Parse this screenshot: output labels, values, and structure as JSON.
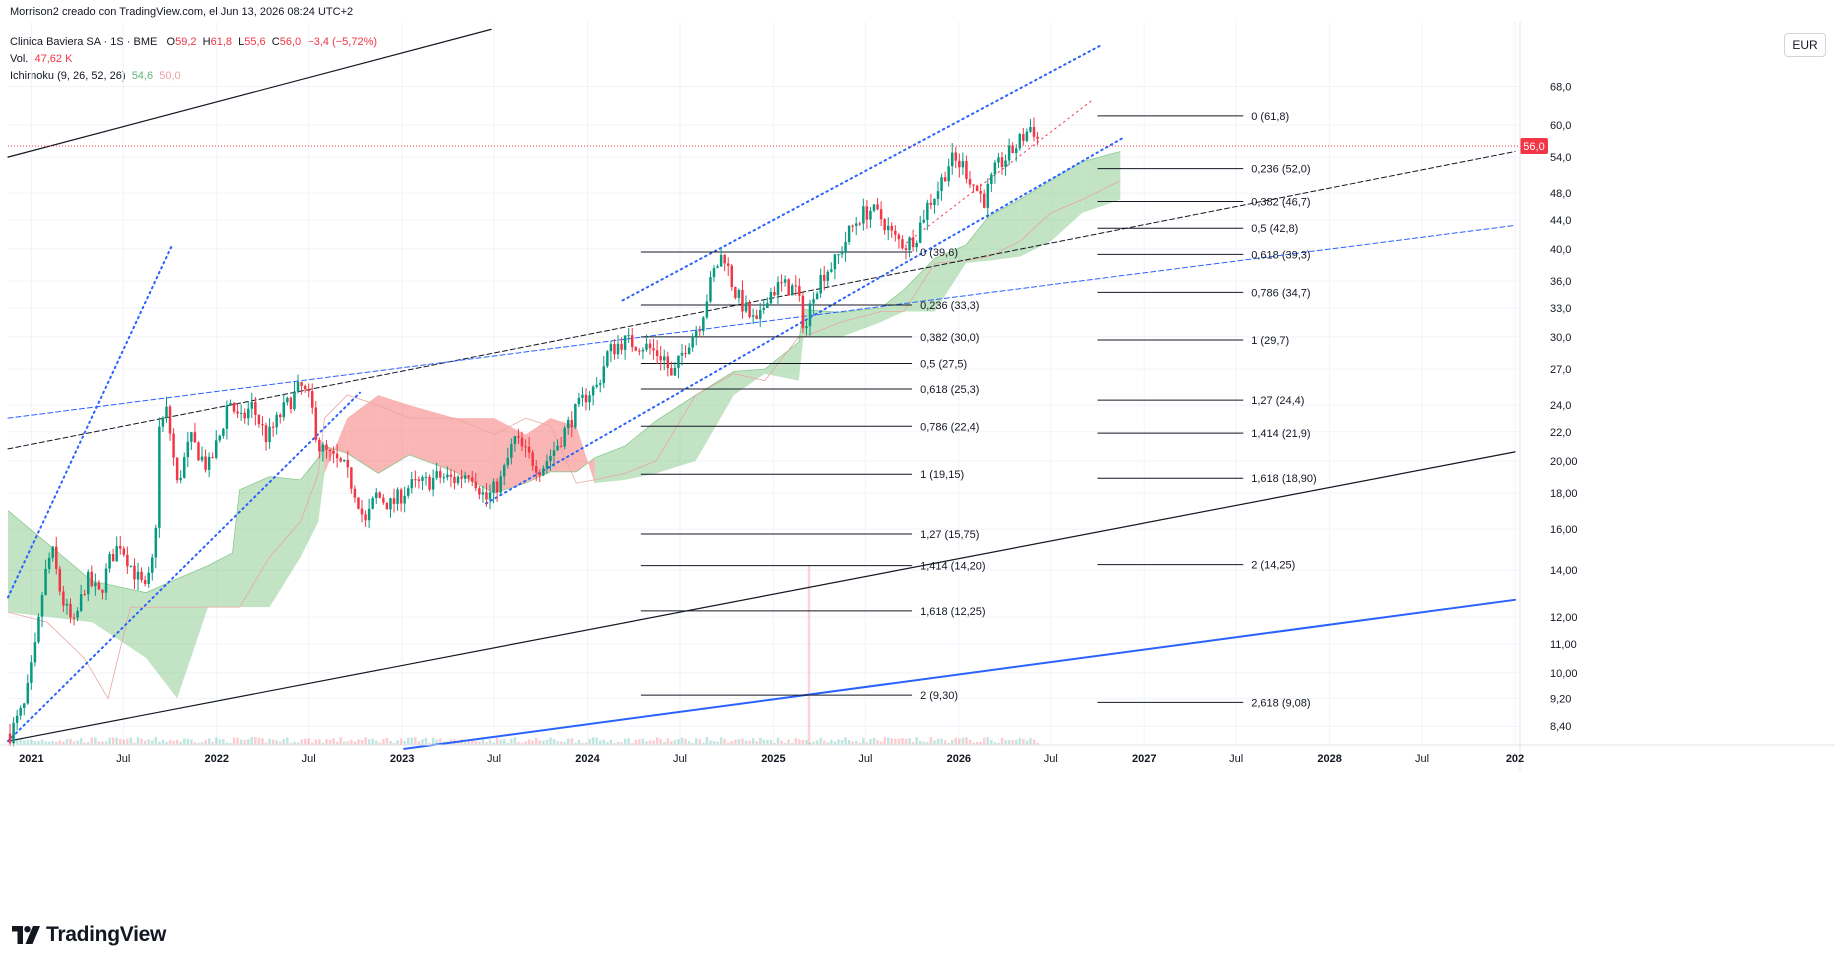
{
  "caption": "Morrison2 creado con TradingView.com, el Jun 13, 2026 08:24 UTC+2",
  "legend": {
    "symbol": "Clinica Baviera SA · 1S · BME",
    "open_label": "O",
    "open": "59,2",
    "high_label": "H",
    "high": "61,8",
    "low_label": "L",
    "low": "55,6",
    "close_label": "C",
    "close": "56,0",
    "change": "−3,4 (−5,72%)",
    "volume_label": "Vol.",
    "volume": "47,62 K",
    "indicator": "Ichimoku (9, 26, 52, 26)",
    "ind_val1": "54,6",
    "ind_val2": "50,0"
  },
  "currency_button": "EUR",
  "brand": {
    "name": "TradingView",
    "logo_icon": "tradingview-logo-icon"
  },
  "chart_data": {
    "type": "candlestick",
    "symbol": "Clinica Baviera SA",
    "interval": "1S",
    "exchange": "BME",
    "y_scale": "log",
    "ylim": [
      7.9,
      84
    ],
    "x_range": [
      "2020-11-16",
      "2028-12-31"
    ],
    "last_price": 56.0,
    "last_price_label": "56,0",
    "price_axis_ticks": [
      "68,0",
      "60,0",
      "54,0",
      "48,0",
      "44,0",
      "40,0",
      "36,0",
      "33,0",
      "30,0",
      "27,0",
      "24,0",
      "22,0",
      "20,00",
      "18,00",
      "16,00",
      "14,00",
      "12,00",
      "11,00",
      "10,00",
      "9,20",
      "8,40"
    ],
    "time_axis_labels": [
      {
        "date": "2021-01-01",
        "label": "2021",
        "bold": true
      },
      {
        "date": "2021-07-01",
        "label": "Jul",
        "bold": false
      },
      {
        "date": "2022-01-01",
        "label": "2022",
        "bold": true
      },
      {
        "date": "2022-07-01",
        "label": "Jul",
        "bold": false
      },
      {
        "date": "2023-01-01",
        "label": "2023",
        "bold": true
      },
      {
        "date": "2023-07-01",
        "label": "Jul",
        "bold": false
      },
      {
        "date": "2024-01-01",
        "label": "2024",
        "bold": true
      },
      {
        "date": "2024-07-01",
        "label": "Jul",
        "bold": false
      },
      {
        "date": "2025-01-01",
        "label": "2025",
        "bold": true
      },
      {
        "date": "2025-07-01",
        "label": "Jul",
        "bold": false
      },
      {
        "date": "2026-01-01",
        "label": "2026",
        "bold": true
      },
      {
        "date": "2026-07-01",
        "label": "Jul",
        "bold": false
      },
      {
        "date": "2027-01-01",
        "label": "2027",
        "bold": true
      },
      {
        "date": "2027-07-01",
        "label": "Jul",
        "bold": false
      },
      {
        "date": "2028-01-01",
        "label": "2028",
        "bold": true
      },
      {
        "date": "2028-07-01",
        "label": "Jul",
        "bold": false
      },
      {
        "date": "2028-12-31",
        "label": "202",
        "bold": true
      }
    ],
    "price_path": [
      [
        "2020-11-20",
        8.2
      ],
      [
        "2020-12-20",
        9.0
      ],
      [
        "2021-01-10",
        11.0
      ],
      [
        "2021-01-25",
        13.5
      ],
      [
        "2021-02-10",
        15.0
      ],
      [
        "2021-03-01",
        12.8
      ],
      [
        "2021-03-25",
        11.6
      ],
      [
        "2021-04-20",
        13.6
      ],
      [
        "2021-05-15",
        12.9
      ],
      [
        "2021-06-05",
        14.5
      ],
      [
        "2021-06-25",
        15.3
      ],
      [
        "2021-07-20",
        14.0
      ],
      [
        "2021-08-15",
        13.0
      ],
      [
        "2021-09-01",
        15.0
      ],
      [
        "2021-09-10",
        22.2
      ],
      [
        "2021-09-25",
        23.6
      ],
      [
        "2021-10-15",
        18.5
      ],
      [
        "2021-11-10",
        21.5
      ],
      [
        "2021-12-15",
        19.5
      ],
      [
        "2022-01-10",
        22.0
      ],
      [
        "2022-01-25",
        24.6
      ],
      [
        "2022-02-15",
        22.6
      ],
      [
        "2022-03-10",
        24.0
      ],
      [
        "2022-04-10",
        21.5
      ],
      [
        "2022-05-10",
        23.5
      ],
      [
        "2022-06-15",
        25.5
      ],
      [
        "2022-07-05",
        24.2
      ],
      [
        "2022-07-20",
        21.0
      ],
      [
        "2022-08-15",
        20.2
      ],
      [
        "2022-09-10",
        19.5
      ],
      [
        "2022-10-05",
        17.8
      ],
      [
        "2022-10-20",
        16.2
      ],
      [
        "2022-11-10",
        17.9
      ],
      [
        "2022-12-10",
        17.3
      ],
      [
        "2023-01-15",
        18.4
      ],
      [
        "2023-02-15",
        18.6
      ],
      [
        "2023-03-15",
        19.0
      ],
      [
        "2023-04-15",
        18.8
      ],
      [
        "2023-05-15",
        19.4
      ],
      [
        "2023-06-15",
        17.6
      ],
      [
        "2023-07-15",
        18.8
      ],
      [
        "2023-08-10",
        21.5
      ],
      [
        "2023-09-01",
        20.5
      ],
      [
        "2023-10-01",
        19.5
      ],
      [
        "2023-11-01",
        21.0
      ],
      [
        "2023-12-01",
        23.0
      ],
      [
        "2024-01-01",
        25.0
      ],
      [
        "2024-01-20",
        25.5
      ],
      [
        "2024-02-10",
        28.5
      ],
      [
        "2024-03-10",
        29.6
      ],
      [
        "2024-04-20",
        29.2
      ],
      [
        "2024-06-01",
        28.0
      ],
      [
        "2024-06-15",
        26.0
      ],
      [
        "2024-07-10",
        29.0
      ],
      [
        "2024-08-10",
        31.5
      ],
      [
        "2024-09-05",
        37.0
      ],
      [
        "2024-09-25",
        39.6
      ],
      [
        "2024-10-15",
        35.0
      ],
      [
        "2024-11-10",
        32.5
      ],
      [
        "2024-12-01",
        31.0
      ],
      [
        "2024-12-20",
        34.5
      ],
      [
        "2025-01-15",
        35.5
      ],
      [
        "2025-02-15",
        35.0
      ],
      [
        "2025-03-05",
        30.5
      ],
      [
        "2025-03-20",
        34.8
      ],
      [
        "2025-04-10",
        37.0
      ],
      [
        "2025-05-05",
        38.5
      ],
      [
        "2025-06-01",
        42.5
      ],
      [
        "2025-06-20",
        44.5
      ],
      [
        "2025-07-10",
        45.5
      ],
      [
        "2025-08-05",
        44.0
      ],
      [
        "2025-08-25",
        41.5
      ],
      [
        "2025-09-20",
        40.5
      ],
      [
        "2025-10-10",
        42.0
      ],
      [
        "2025-10-30",
        46.0
      ],
      [
        "2025-11-20",
        48.5
      ],
      [
        "2025-12-15",
        53.5
      ],
      [
        "2026-01-10",
        52.5
      ],
      [
        "2026-02-01",
        49.0
      ],
      [
        "2026-02-20",
        47.0
      ],
      [
        "2026-03-15",
        52.0
      ],
      [
        "2026-04-15",
        55.0
      ],
      [
        "2026-05-10",
        58.0
      ],
      [
        "2026-05-25",
        60.0
      ],
      [
        "2026-06-10",
        56.0
      ]
    ],
    "ichimoku_cloud": {
      "span_a": [
        [
          "2020-11-16",
          17.0
        ],
        [
          "2021-05-01",
          13.5
        ],
        [
          "2021-08-15",
          13.0
        ],
        [
          "2021-10-15",
          13.6
        ],
        [
          "2021-12-15",
          14.2
        ],
        [
          "2022-02-01",
          14.8
        ],
        [
          "2022-02-15",
          18.2
        ],
        [
          "2022-04-15",
          19.0
        ],
        [
          "2022-06-15",
          18.8
        ],
        [
          "2022-07-20",
          20.2
        ],
        [
          "2022-08-01",
          21.0
        ],
        [
          "2022-09-15",
          20.5
        ],
        [
          "2022-11-15",
          19.2
        ],
        [
          "2023-01-15",
          20.4
        ],
        [
          "2023-04-15",
          19.3
        ],
        [
          "2023-07-01",
          18.0
        ],
        [
          "2023-09-01",
          18.6
        ],
        [
          "2023-10-20",
          19.3
        ],
        [
          "2023-12-10",
          19.3
        ],
        [
          "2024-01-15",
          20.2
        ],
        [
          "2024-03-15",
          21.0
        ],
        [
          "2024-05-15",
          22.8
        ],
        [
          "2024-08-01",
          24.8
        ],
        [
          "2024-10-15",
          26.8
        ],
        [
          "2024-12-15",
          27.0
        ],
        [
          "2025-02-20",
          29.5
        ],
        [
          "2025-03-01",
          32.8
        ],
        [
          "2025-05-15",
          32.5
        ],
        [
          "2025-08-01",
          33.0
        ],
        [
          "2025-09-15",
          35.0
        ],
        [
          "2025-11-15",
          38.8
        ],
        [
          "2026-01-15",
          40.5
        ],
        [
          "2026-03-01",
          44.5
        ],
        [
          "2026-05-01",
          47.0
        ],
        [
          "2026-07-01",
          50.0
        ],
        [
          "2026-09-01",
          53.2
        ],
        [
          "2026-11-15",
          55.0
        ]
      ],
      "span_b": [
        [
          "2020-11-16",
          12.2
        ],
        [
          "2021-02-01",
          11.8
        ],
        [
          "2021-04-15",
          10.5
        ],
        [
          "2021-06-01",
          9.2
        ],
        [
          "2021-07-15",
          12.4
        ],
        [
          "2021-12-15",
          12.4
        ],
        [
          "2022-02-01",
          12.4
        ],
        [
          "2022-02-15",
          12.4
        ],
        [
          "2022-04-15",
          14.6
        ],
        [
          "2022-06-15",
          16.4
        ],
        [
          "2022-07-20",
          19.2
        ],
        [
          "2022-08-01",
          23.0
        ],
        [
          "2022-09-15",
          24.8
        ],
        [
          "2022-11-15",
          24.0
        ],
        [
          "2023-01-15",
          23.0
        ],
        [
          "2023-04-15",
          23.0
        ],
        [
          "2023-07-01",
          21.8
        ],
        [
          "2023-09-01",
          23.0
        ],
        [
          "2023-10-20",
          22.4
        ],
        [
          "2023-12-10",
          18.6
        ],
        [
          "2024-01-15",
          18.8
        ],
        [
          "2024-03-15",
          19.2
        ],
        [
          "2024-05-15",
          20.0
        ],
        [
          "2024-08-01",
          24.8
        ],
        [
          "2024-10-15",
          26.6
        ],
        [
          "2024-12-15",
          26.0
        ],
        [
          "2025-02-20",
          30.0
        ],
        [
          "2025-03-01",
          30.0
        ],
        [
          "2025-05-15",
          31.5
        ],
        [
          "2025-08-01",
          32.6
        ],
        [
          "2025-09-15",
          32.6
        ],
        [
          "2025-11-15",
          38.2
        ],
        [
          "2026-01-15",
          38.5
        ],
        [
          "2026-03-01",
          39.0
        ],
        [
          "2026-05-01",
          41.0
        ],
        [
          "2026-07-01",
          45.0
        ],
        [
          "2026-09-01",
          47.0
        ],
        [
          "2026-11-15",
          50.0
        ]
      ]
    },
    "fib_retracement_left": {
      "x_start": "2024-04-15",
      "x_end": "2025-10-01",
      "levels": [
        {
          "value": 39.6,
          "label": "0 (39,6)"
        },
        {
          "value": 33.3,
          "label": "0,236 (33,3)"
        },
        {
          "value": 30.0,
          "label": "0,382 (30,0)"
        },
        {
          "value": 27.5,
          "label": "0,5 (27,5)"
        },
        {
          "value": 25.3,
          "label": "0,618 (25,3)"
        },
        {
          "value": 22.4,
          "label": "0,786 (22,4)"
        },
        {
          "value": 19.15,
          "label": "1 (19,15)"
        },
        {
          "value": 15.75,
          "label": "1,27 (15,75)"
        },
        {
          "value": 14.2,
          "label": "1,414 (14,20)"
        },
        {
          "value": 12.25,
          "label": "1,618 (12,25)"
        },
        {
          "value": 9.3,
          "label": "2 (9,30)"
        }
      ]
    },
    "fib_retracement_right": {
      "x_start": "2026-10-01",
      "x_end": "2027-07-15",
      "levels": [
        {
          "value": 61.8,
          "label": "0 (61,8)"
        },
        {
          "value": 52.0,
          "label": "0,236 (52,0)"
        },
        {
          "value": 46.7,
          "label": "0,382 (46,7)"
        },
        {
          "value": 42.8,
          "label": "0,5 (42,8)"
        },
        {
          "value": 39.3,
          "label": "0,618 (39,3)"
        },
        {
          "value": 34.7,
          "label": "0,786 (34,7)"
        },
        {
          "value": 29.7,
          "label": "1 (29,7)"
        },
        {
          "value": 24.4,
          "label": "1,27 (24,4)"
        },
        {
          "value": 21.9,
          "label": "1,414 (21,9)"
        },
        {
          "value": 18.9,
          "label": "1,618 (18,90)"
        },
        {
          "value": 14.25,
          "label": "2 (14,25)"
        },
        {
          "value": 9.08,
          "label": "2,618 (9,08)"
        }
      ]
    },
    "trend_lines": [
      {
        "style": "solid",
        "color": "#131722",
        "width": 1.2,
        "from": [
          "2020-11-16",
          54.0
        ],
        "to": [
          "2023-06-25",
          82.0
        ]
      },
      {
        "style": "solid",
        "color": "#131722",
        "width": 1.2,
        "from": [
          "2020-11-16",
          8.0
        ],
        "to": [
          "2028-12-31",
          20.6
        ]
      },
      {
        "style": "solid",
        "color": "#2962ff",
        "width": 2.0,
        "from": [
          "2023-01-05",
          7.8
        ],
        "to": [
          "2028-12-31",
          12.7
        ]
      },
      {
        "style": "dashed",
        "color": "#131722",
        "width": 1.0,
        "from": [
          "2020-11-16",
          20.8
        ],
        "to": [
          "2028-12-31",
          55.0
        ]
      },
      {
        "style": "dashed",
        "color": "#2962ff",
        "width": 1.0,
        "from": [
          "2020-11-16",
          23.0
        ],
        "to": [
          "2028-12-31",
          43.2
        ]
      },
      {
        "style": "dotted",
        "color": "#2962ff",
        "width": 2.0,
        "from": [
          "2020-11-16",
          12.8
        ],
        "to": [
          "2021-10-05",
          40.5
        ]
      },
      {
        "style": "dotted",
        "color": "#2962ff",
        "width": 2.0,
        "from": [
          "2020-11-16",
          8.0
        ],
        "to": [
          "2022-10-10",
          25.0
        ]
      },
      {
        "style": "dotted",
        "color": "#2962ff",
        "width": 2.0,
        "from": [
          "2023-06-15",
          17.4
        ],
        "to": [
          "2026-11-20",
          57.5
        ]
      },
      {
        "style": "dotted",
        "color": "#2962ff",
        "width": 2.0,
        "from": [
          "2024-03-10",
          33.8
        ],
        "to": [
          "2026-10-10",
          78.0
        ]
      },
      {
        "style": "dotted",
        "color": "#f23645",
        "width": 1.0,
        "from": [
          "2025-09-20",
          40.8
        ],
        "to": [
          "2026-09-20",
          65.0
        ]
      }
    ]
  }
}
